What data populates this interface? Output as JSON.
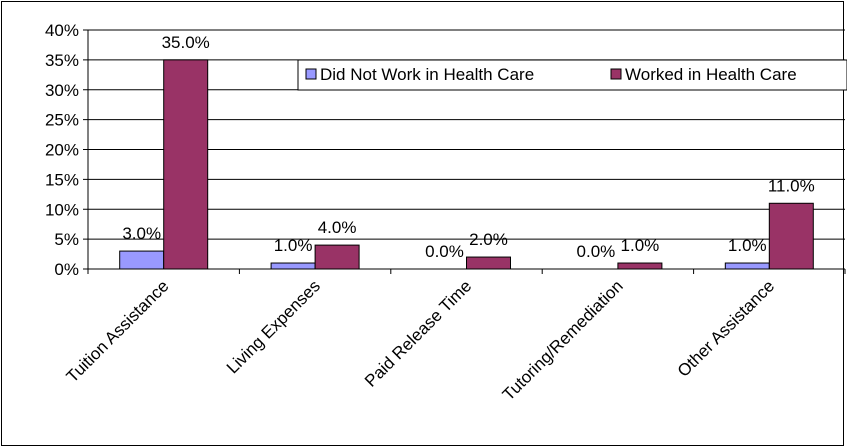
{
  "chart_data": {
    "type": "bar",
    "categories": [
      "Tuition Assistance",
      "Living Expenses",
      "Paid Release Time",
      "Tutoring/Remediation",
      "Other Assistance"
    ],
    "series": [
      {
        "name": "Did Not Work in Health Care",
        "values": [
          3.0,
          1.0,
          0.0,
          0.0,
          1.0
        ],
        "labels": [
          "3.0%",
          "1.0%",
          "0.0%",
          "0.0%",
          "1.0%"
        ],
        "color": "#9999FF"
      },
      {
        "name": "Worked in Health Care",
        "values": [
          35.0,
          4.0,
          2.0,
          1.0,
          11.0
        ],
        "labels": [
          "35.0%",
          "4.0%",
          "2.0%",
          "1.0%",
          "11.0%"
        ],
        "color": "#993366"
      }
    ],
    "ylim": [
      0,
      40
    ],
    "yticks": [
      "0%",
      "5%",
      "10%",
      "15%",
      "20%",
      "25%",
      "30%",
      "35%",
      "40%"
    ],
    "ytick_values": [
      0,
      5,
      10,
      15,
      20,
      25,
      30,
      35,
      40
    ],
    "grid": true,
    "legend_position": "top-right",
    "title": "",
    "xlabel": "",
    "ylabel": ""
  }
}
